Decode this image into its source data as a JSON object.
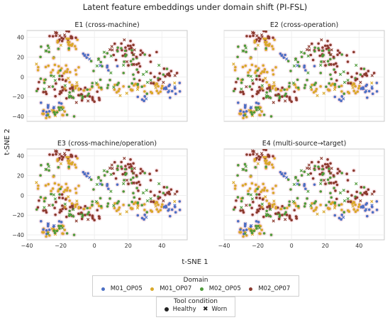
{
  "chart_data": {
    "type": "scatter",
    "title": "Latent feature embeddings under domain shift (PI-FSL)",
    "xlabel": "t-SNE 1",
    "ylabel": "t-SNE 2",
    "xlim": [
      -40,
      55
    ],
    "ylim": [
      -45,
      47
    ],
    "xticks": [
      "−40",
      "−20",
      "0",
      "20",
      "40"
    ],
    "xtick_values": [
      -40,
      -20,
      0,
      20,
      40
    ],
    "yticks": [
      "40",
      "20",
      "0",
      "−20",
      "−40"
    ],
    "ytick_values": [
      40,
      20,
      0,
      -20,
      -40
    ],
    "grid": true,
    "panels": [
      {
        "title": "E1 (cross-machine)",
        "show_xticks": false,
        "show_yticks": true
      },
      {
        "title": "E2 (cross-operation)",
        "show_xticks": false,
        "show_yticks": false
      },
      {
        "title": "E3 (cross-machine/operation)",
        "show_xticks": true,
        "show_yticks": true
      },
      {
        "title": "E4 (multi-source→target)",
        "show_xticks": true,
        "show_yticks": false
      }
    ],
    "clusters": [
      {
        "domain": 3,
        "cx": -19,
        "cy": 40,
        "sx": 5,
        "sy": 3,
        "n": 22
      },
      {
        "domain": 1,
        "cx": -17,
        "cy": 34,
        "sx": 5,
        "sy": 5,
        "n": 18
      },
      {
        "domain": 2,
        "cx": -25,
        "cy": 28,
        "sx": 4,
        "sy": 6,
        "n": 10
      },
      {
        "domain": 1,
        "cx": -24,
        "cy": 6,
        "sx": 6,
        "sy": 5,
        "n": 20
      },
      {
        "domain": 2,
        "cx": -27,
        "cy": -5,
        "sx": 4,
        "sy": 6,
        "n": 12
      },
      {
        "domain": 3,
        "cx": -20,
        "cy": -12,
        "sx": 6,
        "sy": 7,
        "n": 30
      },
      {
        "domain": 2,
        "cx": -8,
        "cy": -18,
        "sx": 5,
        "sy": 5,
        "n": 14
      },
      {
        "domain": 1,
        "cx": -12,
        "cy": -4,
        "sx": 5,
        "sy": 8,
        "n": 16
      },
      {
        "domain": 1,
        "cx": -24,
        "cy": -35,
        "sx": 5,
        "sy": 4,
        "n": 20
      },
      {
        "domain": 0,
        "cx": -27,
        "cy": -31,
        "sx": 3,
        "sy": 4,
        "n": 12
      },
      {
        "domain": 2,
        "cx": -21,
        "cy": -37,
        "sx": 5,
        "sy": 3,
        "n": 10
      },
      {
        "domain": 0,
        "cx": -6,
        "cy": 22,
        "sx": 2,
        "sy": 2,
        "n": 6
      },
      {
        "domain": 3,
        "cx": -3,
        "cy": -22,
        "sx": 4,
        "sy": 3,
        "n": 14
      },
      {
        "domain": 3,
        "cx": 19,
        "cy": 29,
        "sx": 6,
        "sy": 5,
        "n": 24
      },
      {
        "domain": 2,
        "cx": 12,
        "cy": 20,
        "sx": 9,
        "sy": 7,
        "n": 28
      },
      {
        "domain": 1,
        "cx": 12,
        "cy": -12,
        "sx": 10,
        "sy": 4,
        "n": 26
      },
      {
        "domain": 2,
        "cx": 30,
        "cy": 0,
        "sx": 8,
        "sy": 7,
        "n": 20
      },
      {
        "domain": 3,
        "cx": 24,
        "cy": 15,
        "sx": 6,
        "sy": 6,
        "n": 14
      },
      {
        "domain": 0,
        "cx": 44,
        "cy": -13,
        "sx": 4,
        "sy": 3,
        "n": 16
      },
      {
        "domain": 1,
        "cx": 33,
        "cy": -10,
        "sx": 5,
        "sy": 4,
        "n": 14
      },
      {
        "domain": 3,
        "cx": 43,
        "cy": 3,
        "sx": 3,
        "sy": 4,
        "n": 10
      },
      {
        "domain": 0,
        "cx": 28,
        "cy": -20,
        "sx": 2,
        "sy": 2,
        "n": 5
      },
      {
        "domain": 2,
        "cx": 4,
        "cy": -8,
        "sx": 4,
        "sy": 6,
        "n": 10
      },
      {
        "domain": 0,
        "cx": 8,
        "cy": 8,
        "sx": 3,
        "sy": 3,
        "n": 5
      },
      {
        "domain": 3,
        "cx": 38,
        "cy": -3,
        "sx": 5,
        "sy": 3,
        "n": 8
      }
    ]
  },
  "legend": {
    "domain_title": "Domain",
    "domains": [
      {
        "label": "M01_OP05",
        "color": "#4c6fc4"
      },
      {
        "label": "M01_OP07",
        "color": "#d9a82a"
      },
      {
        "label": "M02_OP05",
        "color": "#4f9a3a"
      },
      {
        "label": "M02_OP07",
        "color": "#8b3a2e"
      }
    ],
    "condition_title": "Tool condition",
    "conditions": [
      {
        "label": "Healthy",
        "marker": "circle"
      },
      {
        "label": "Worn",
        "marker": "x"
      }
    ]
  },
  "colors": {
    "healthy_halo": "#f2b8c6",
    "panel_border": "#c8c8c8",
    "grid": "#ececec"
  }
}
